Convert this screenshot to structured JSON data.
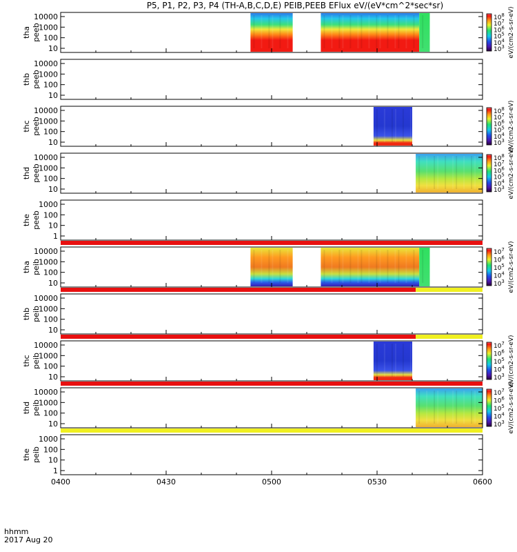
{
  "chart_data": {
    "type": "heatmap",
    "title": "P5, P1, P2, P3, P4 (TH-A,B,C,D,E) PEIB,PEEB EFlux eV/(eV*cm^2*sec*sr)",
    "footer": {
      "label": "hhmm",
      "date": "2017 Aug 20"
    },
    "x_range": [
      "04:00",
      "06:00"
    ],
    "x_ticks": [
      "0400",
      "0430",
      "0500",
      "0530",
      "0600"
    ],
    "colorbar_label": "eV/(cm2-s-sr-eV)",
    "panels": [
      {
        "label1": "tha",
        "label2": "peeb",
        "yticks": [
          "10000",
          "1000",
          "100",
          "10"
        ],
        "log": true,
        "colorbar": true,
        "cbar_ticks": [
          "10^8",
          "10^7",
          "10^6",
          "10^5",
          "10^4",
          "10^3"
        ],
        "segments": [
          {
            "start": "04:54",
            "end": "05:06",
            "profile": "electron"
          },
          {
            "start": "05:14",
            "end": "05:42",
            "profile": "electron"
          },
          {
            "start": "05:42",
            "end": "05:45",
            "profile": "green"
          }
        ]
      },
      {
        "label1": "thb",
        "label2": "peeb",
        "yticks": [
          "10000",
          "1000",
          "100",
          "10"
        ],
        "log": true,
        "colorbar": false,
        "segments": []
      },
      {
        "label1": "thc",
        "label2": "peeb",
        "yticks": [
          "10000",
          "1000",
          "100",
          "10"
        ],
        "log": true,
        "colorbar": true,
        "cbar_ticks": [
          "10^8",
          "10^7",
          "10^6",
          "10^5",
          "10^4",
          "10^3"
        ],
        "segments": [
          {
            "start": "05:29",
            "end": "05:40",
            "profile": "dark"
          }
        ]
      },
      {
        "label1": "thd",
        "label2": "peeb",
        "yticks": [
          "10000",
          "1000",
          "100",
          "10"
        ],
        "log": true,
        "colorbar": true,
        "cbar_ticks": [
          "10^8",
          "10^7",
          "10^6",
          "10^5",
          "10^4",
          "10^3"
        ],
        "segments": [
          {
            "start": "05:41",
            "end": "06:00",
            "profile": "mixed"
          }
        ]
      },
      {
        "label1": "the",
        "label2": "peeb",
        "yticks": [
          "1000",
          "100",
          "10",
          "1"
        ],
        "log": true,
        "colorbar": false,
        "segments": []
      },
      {
        "label1": "tha",
        "label2": "peib",
        "yticks": [
          "10000",
          "1000",
          "100",
          "10"
        ],
        "log": true,
        "colorbar": true,
        "cbar_ticks": [
          "10^7",
          "10^6",
          "10^5",
          "10^4",
          "10^3"
        ],
        "segments": [
          {
            "start": "04:54",
            "end": "05:06",
            "profile": "ion"
          },
          {
            "start": "05:14",
            "end": "05:42",
            "profile": "ion"
          },
          {
            "start": "05:42",
            "end": "05:45",
            "profile": "green"
          }
        ]
      },
      {
        "label1": "thb",
        "label2": "peib",
        "yticks": [
          "10000",
          "1000",
          "100",
          "10"
        ],
        "log": true,
        "colorbar": false,
        "segments": []
      },
      {
        "label1": "thc",
        "label2": "peib",
        "yticks": [
          "10000",
          "1000",
          "100",
          "10"
        ],
        "log": true,
        "colorbar": true,
        "cbar_ticks": [
          "10^7",
          "10^6",
          "10^5",
          "10^4",
          "10^3"
        ],
        "segments": [
          {
            "start": "05:29",
            "end": "05:40",
            "profile": "dark"
          }
        ]
      },
      {
        "label1": "thd",
        "label2": "peib",
        "yticks": [
          "10000",
          "1000",
          "100",
          "10"
        ],
        "log": true,
        "colorbar": true,
        "cbar_ticks": [
          "10^7",
          "10^6",
          "10^5",
          "10^4",
          "10^3"
        ],
        "segments": [
          {
            "start": "05:41",
            "end": "06:00",
            "profile": "mixed"
          }
        ]
      },
      {
        "label1": "the",
        "label2": "peib",
        "yticks": [
          "1000",
          "100",
          "10",
          "1"
        ],
        "log": true,
        "colorbar": false,
        "segments": []
      }
    ],
    "flag_bars": [
      {
        "after_panel": 4,
        "segments": [
          {
            "start": "04:00",
            "end": "06:00",
            "color": "#e81010"
          }
        ]
      },
      {
        "after_panel": 5,
        "segments": [
          {
            "start": "04:00",
            "end": "05:41",
            "color": "#e81010"
          },
          {
            "start": "05:41",
            "end": "06:00",
            "color": "#f0f020"
          }
        ]
      },
      {
        "after_panel": 6,
        "segments": [
          {
            "start": "04:00",
            "end": "05:41",
            "color": "#e81010"
          },
          {
            "start": "05:41",
            "end": "06:00",
            "color": "#f0f020"
          }
        ]
      },
      {
        "after_panel": 7,
        "segments": [
          {
            "start": "04:00",
            "end": "06:00",
            "color": "#e81010"
          }
        ]
      },
      {
        "after_panel": 8,
        "segments": [
          {
            "start": "04:00",
            "end": "06:00",
            "color": "#f0f020"
          }
        ]
      }
    ],
    "colors": {
      "frame": "#000000",
      "background": "#ffffff"
    }
  }
}
